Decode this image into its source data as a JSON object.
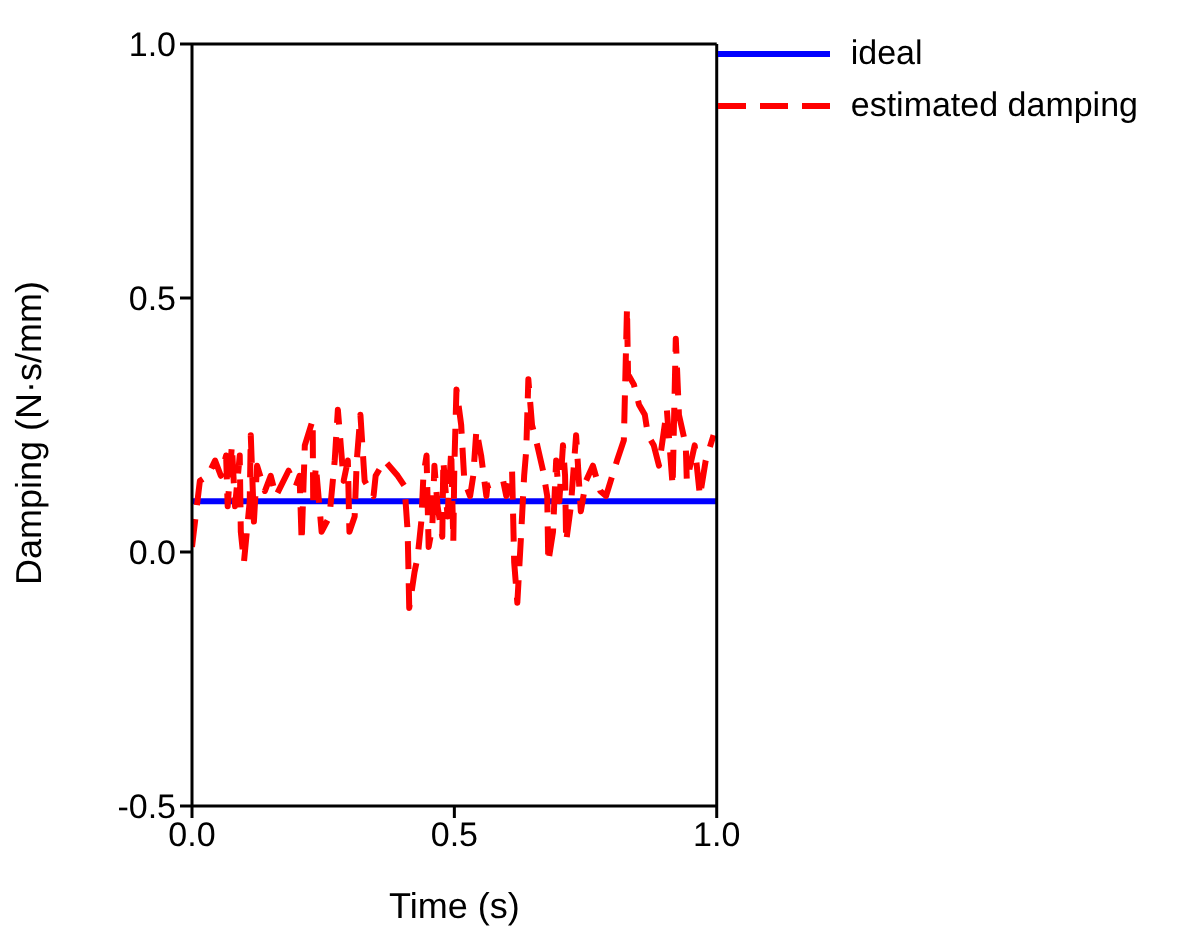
{
  "chart_data": {
    "type": "line",
    "xlabel": "Time (s)",
    "ylabel": "Damping (N·s/mm)",
    "xlim": [
      0,
      1
    ],
    "ylim": [
      -0.5,
      1
    ],
    "xticks": [
      {
        "value": 0,
        "label": "0.0"
      },
      {
        "value": 0.5,
        "label": "0.5"
      },
      {
        "value": 1,
        "label": "1.0"
      }
    ],
    "yticks": [
      {
        "value": -0.5,
        "label": "-0.5"
      },
      {
        "value": 0,
        "label": "0.0"
      },
      {
        "value": 0.5,
        "label": "0.5"
      },
      {
        "value": 1,
        "label": "1.0"
      }
    ],
    "legend": "top right",
    "marker": "none",
    "series": [
      {
        "name": "ideal",
        "color": "#0000ff",
        "line_style": "solid",
        "x": [
          0,
          1
        ],
        "values": [
          0.1,
          0.1
        ]
      },
      {
        "name": "estimated damping",
        "color": "#ff0000",
        "line_style": "dashed",
        "x": [
          0,
          0.015,
          0.03,
          0.044,
          0.055,
          0.065,
          0.068,
          0.076,
          0.082,
          0.091,
          0.093,
          0.099,
          0.11,
          0.112,
          0.118,
          0.124,
          0.139,
          0.15,
          0.16,
          0.184,
          0.198,
          0.205,
          0.209,
          0.215,
          0.23,
          0.231,
          0.236,
          0.247,
          0.262,
          0.272,
          0.278,
          0.289,
          0.297,
          0.3,
          0.31,
          0.314,
          0.321,
          0.329,
          0.346,
          0.35,
          0.367,
          0.392,
          0.405,
          0.411,
          0.414,
          0.424,
          0.43,
          0.437,
          0.441,
          0.447,
          0.451,
          0.458,
          0.462,
          0.468,
          0.477,
          0.479,
          0.487,
          0.494,
          0.498,
          0.5,
          0.504,
          0.513,
          0.519,
          0.53,
          0.536,
          0.542,
          0.551,
          0.561,
          0.563,
          0.593,
          0.599,
          0.61,
          0.614,
          0.62,
          0.627,
          0.633,
          0.637,
          0.641,
          0.648,
          0.658,
          0.669,
          0.677,
          0.679,
          0.688,
          0.694,
          0.7,
          0.707,
          0.711,
          0.713,
          0.722,
          0.732,
          0.741,
          0.751,
          0.764,
          0.778,
          0.789,
          0.81,
          0.823,
          0.829,
          0.831,
          0.842,
          0.852,
          0.863,
          0.869,
          0.88,
          0.89,
          0.905,
          0.916,
          0.922,
          0.928,
          0.941,
          0.943,
          0.958,
          0.968,
          0.979,
          0.994
        ],
        "values": [
          0.01,
          0.14,
          0.15,
          0.18,
          0.15,
          0.19,
          0.09,
          0.21,
          0.09,
          0.19,
          0.04,
          -0.02,
          0.1,
          0.23,
          0.06,
          0.17,
          0.12,
          0.15,
          0.11,
          0.16,
          0.13,
          0.15,
          0.02,
          0.21,
          0.26,
          0.09,
          0.17,
          0.04,
          0.07,
          0.18,
          0.28,
          0.14,
          0.18,
          0.04,
          0.07,
          0.18,
          0.27,
          0.14,
          0.11,
          0.15,
          0.18,
          0.15,
          0.13,
          0.04,
          -0.11,
          -0.04,
          -0.01,
          0.06,
          0.15,
          0.19,
          0.01,
          0.05,
          0.17,
          0.09,
          0.03,
          0.18,
          0.07,
          0.2,
          0.02,
          0.17,
          0.32,
          0.25,
          0.14,
          0.11,
          0.15,
          0.24,
          0.19,
          0.11,
          0.13,
          0.14,
          0.11,
          0.16,
          -0.02,
          -0.1,
          0.03,
          0.15,
          0.2,
          0.34,
          0.25,
          0.21,
          0.16,
          0.11,
          -0.02,
          0.04,
          0.18,
          0.1,
          0.21,
          0.15,
          0.02,
          0.09,
          0.23,
          0.08,
          0.14,
          0.17,
          0.12,
          0.11,
          0.18,
          0.22,
          0.48,
          0.35,
          0.33,
          0.29,
          0.27,
          0.23,
          0.21,
          0.17,
          0.28,
          0.13,
          0.42,
          0.27,
          0.21,
          0.14,
          0.21,
          0.11,
          0.18,
          0.23
        ]
      }
    ]
  }
}
